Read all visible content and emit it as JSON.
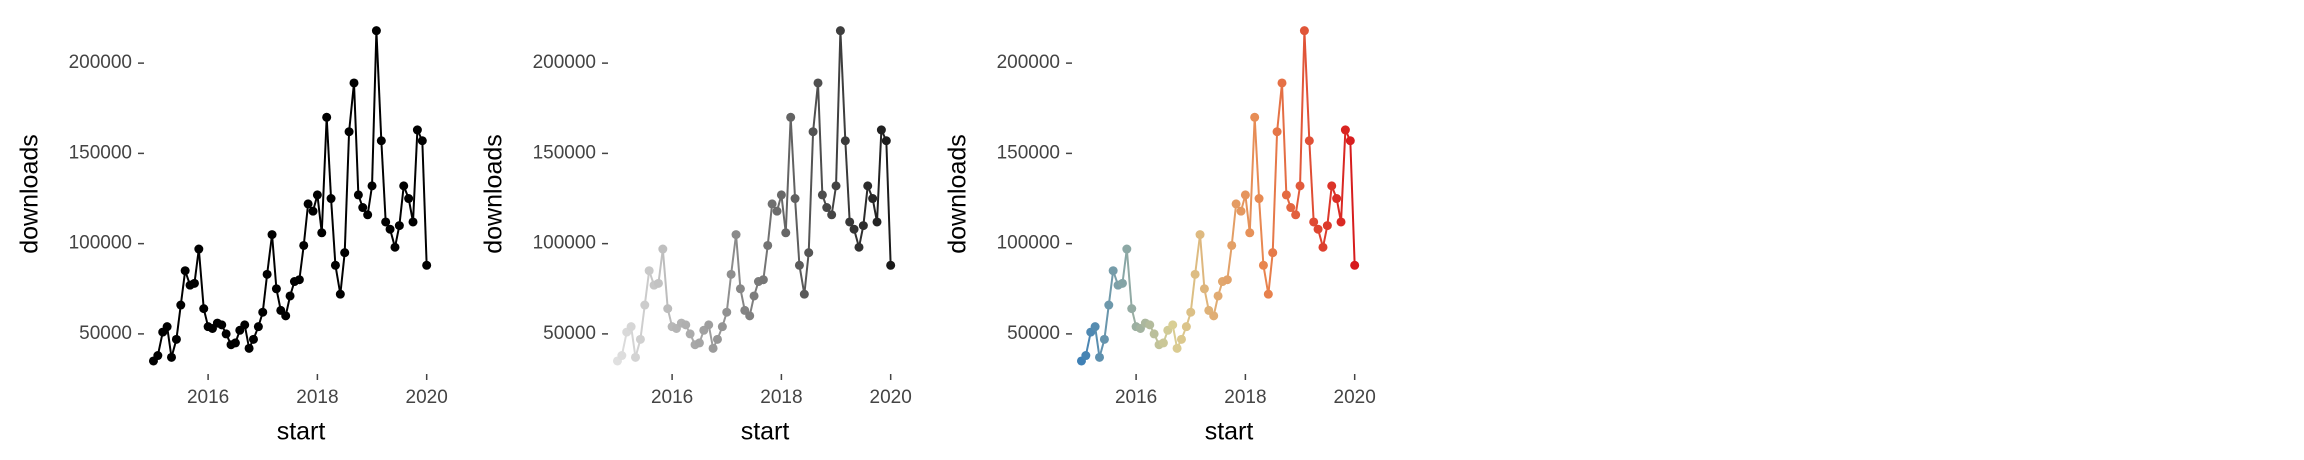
{
  "chart_data": [
    {
      "type": "line",
      "x_label": "start",
      "y_label": "downloads",
      "color_scale": [
        "#000000",
        "#000000"
      ],
      "x": [
        2015,
        2015.08,
        2015.17,
        2015.25,
        2015.33,
        2015.42,
        2015.5,
        2015.58,
        2015.67,
        2015.75,
        2015.83,
        2015.92,
        2016,
        2016.08,
        2016.17,
        2016.25,
        2016.33,
        2016.42,
        2016.5,
        2016.58,
        2016.67,
        2016.75,
        2016.83,
        2016.92,
        2017,
        2017.08,
        2017.17,
        2017.25,
        2017.33,
        2017.42,
        2017.5,
        2017.58,
        2017.67,
        2017.75,
        2017.83,
        2017.92,
        2018,
        2018.08,
        2018.17,
        2018.25,
        2018.33,
        2018.42,
        2018.5,
        2018.58,
        2018.67,
        2018.75,
        2018.83,
        2018.92,
        2019,
        2019.08,
        2019.17,
        2019.25,
        2019.33,
        2019.42,
        2019.5,
        2019.58,
        2019.67,
        2019.75,
        2019.83,
        2019.92,
        2020
      ],
      "values": [
        35000,
        38000,
        51000,
        54000,
        37000,
        47000,
        66000,
        85000,
        77000,
        78000,
        97000,
        64000,
        54000,
        53000,
        56000,
        55000,
        50000,
        44000,
        45000,
        52000,
        55000,
        42000,
        47000,
        54000,
        62000,
        83000,
        105000,
        75000,
        63000,
        60000,
        71000,
        79000,
        80000,
        99000,
        122000,
        118000,
        127000,
        106000,
        170000,
        125000,
        88000,
        72000,
        95000,
        162000,
        189000,
        127000,
        120000,
        116000,
        132000,
        218000,
        157000,
        112000,
        108000,
        98000,
        110000,
        132000,
        125000,
        112000,
        163000,
        157000,
        88000
      ],
      "xlim": [
        2014.9,
        2020.5
      ],
      "xticks": [
        2016,
        2018,
        2020
      ],
      "ylim": [
        30000,
        225000
      ],
      "yticks": [
        50000,
        100000,
        150000,
        200000
      ]
    },
    {
      "type": "line",
      "x_label": "start",
      "y_label": "downloads",
      "color_scale": [
        "#e0e0e0",
        "#1a1a1a"
      ],
      "x": [
        2015,
        2015.08,
        2015.17,
        2015.25,
        2015.33,
        2015.42,
        2015.5,
        2015.58,
        2015.67,
        2015.75,
        2015.83,
        2015.92,
        2016,
        2016.08,
        2016.17,
        2016.25,
        2016.33,
        2016.42,
        2016.5,
        2016.58,
        2016.67,
        2016.75,
        2016.83,
        2016.92,
        2017,
        2017.08,
        2017.17,
        2017.25,
        2017.33,
        2017.42,
        2017.5,
        2017.58,
        2017.67,
        2017.75,
        2017.83,
        2017.92,
        2018,
        2018.08,
        2018.17,
        2018.25,
        2018.33,
        2018.42,
        2018.5,
        2018.58,
        2018.67,
        2018.75,
        2018.83,
        2018.92,
        2019,
        2019.08,
        2019.17,
        2019.25,
        2019.33,
        2019.42,
        2019.5,
        2019.58,
        2019.67,
        2019.75,
        2019.83,
        2019.92,
        2020
      ],
      "values": [
        35000,
        38000,
        51000,
        54000,
        37000,
        47000,
        66000,
        85000,
        77000,
        78000,
        97000,
        64000,
        54000,
        53000,
        56000,
        55000,
        50000,
        44000,
        45000,
        52000,
        55000,
        42000,
        47000,
        54000,
        62000,
        83000,
        105000,
        75000,
        63000,
        60000,
        71000,
        79000,
        80000,
        99000,
        122000,
        118000,
        127000,
        106000,
        170000,
        125000,
        88000,
        72000,
        95000,
        162000,
        189000,
        127000,
        120000,
        116000,
        132000,
        218000,
        157000,
        112000,
        108000,
        98000,
        110000,
        132000,
        125000,
        112000,
        163000,
        157000,
        88000
      ],
      "xlim": [
        2014.9,
        2020.5
      ],
      "xticks": [
        2016,
        2018,
        2020
      ],
      "ylim": [
        30000,
        225000
      ],
      "yticks": [
        50000,
        100000,
        150000,
        200000
      ]
    },
    {
      "type": "line",
      "x_label": "start",
      "y_label": "downloads",
      "color_scale": [
        "#3f80b5",
        "#d9cf94",
        "#e8864f",
        "#d7191c"
      ],
      "x": [
        2015,
        2015.08,
        2015.17,
        2015.25,
        2015.33,
        2015.42,
        2015.5,
        2015.58,
        2015.67,
        2015.75,
        2015.83,
        2015.92,
        2016,
        2016.08,
        2016.17,
        2016.25,
        2016.33,
        2016.42,
        2016.5,
        2016.58,
        2016.67,
        2016.75,
        2016.83,
        2016.92,
        2017,
        2017.08,
        2017.17,
        2017.25,
        2017.33,
        2017.42,
        2017.5,
        2017.58,
        2017.67,
        2017.75,
        2017.83,
        2017.92,
        2018,
        2018.08,
        2018.17,
        2018.25,
        2018.33,
        2018.42,
        2018.5,
        2018.58,
        2018.67,
        2018.75,
        2018.83,
        2018.92,
        2019,
        2019.08,
        2019.17,
        2019.25,
        2019.33,
        2019.42,
        2019.5,
        2019.58,
        2019.67,
        2019.75,
        2019.83,
        2019.92,
        2020
      ],
      "values": [
        35000,
        38000,
        51000,
        54000,
        37000,
        47000,
        66000,
        85000,
        77000,
        78000,
        97000,
        64000,
        54000,
        53000,
        56000,
        55000,
        50000,
        44000,
        45000,
        52000,
        55000,
        42000,
        47000,
        54000,
        62000,
        83000,
        105000,
        75000,
        63000,
        60000,
        71000,
        79000,
        80000,
        99000,
        122000,
        118000,
        127000,
        106000,
        170000,
        125000,
        88000,
        72000,
        95000,
        162000,
        189000,
        127000,
        120000,
        116000,
        132000,
        218000,
        157000,
        112000,
        108000,
        98000,
        110000,
        132000,
        125000,
        112000,
        163000,
        157000,
        88000
      ],
      "xlim": [
        2014.9,
        2020.5
      ],
      "xticks": [
        2016,
        2018,
        2020
      ],
      "ylim": [
        30000,
        225000
      ],
      "yticks": [
        50000,
        100000,
        150000,
        200000
      ]
    }
  ]
}
